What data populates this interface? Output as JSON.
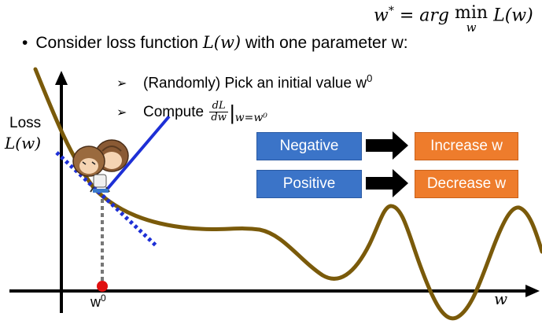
{
  "formula": {
    "lhs": "w",
    "star": "*",
    "eq": "=",
    "arg": "arg",
    "min": "min",
    "min_sub": "w",
    "fn": "L(w)"
  },
  "bullet": {
    "dot": "•",
    "prefix": "Consider loss function",
    "fn": "L(w)",
    "suffix": "with one parameter w:"
  },
  "steps": {
    "marker": "➢",
    "step1_text": "(Randomly) Pick an initial value w",
    "step1_sup": "0",
    "step2_prefix": "Compute",
    "frac_num": "dL",
    "frac_den": "dw",
    "eval_bar": "|",
    "eval_sub": "w=w⁰"
  },
  "axes": {
    "y_label": "Loss",
    "y_math": "L(w)",
    "x_label": "w",
    "w0_label": "w",
    "w0_sup": "0"
  },
  "boxes": {
    "negative": "Negative",
    "positive": "Positive",
    "increase": "Increase w",
    "decrease": "Decrease w"
  },
  "colors": {
    "curve": "#7a5a0a",
    "tangent": "#1d2fd6",
    "blue_box": "#3b74c8",
    "orange_box": "#ee7c2c",
    "red_dot": "#e01010",
    "arrow": "#000000"
  },
  "illustration": {
    "icon": "two-cartoon-characters-icon"
  }
}
